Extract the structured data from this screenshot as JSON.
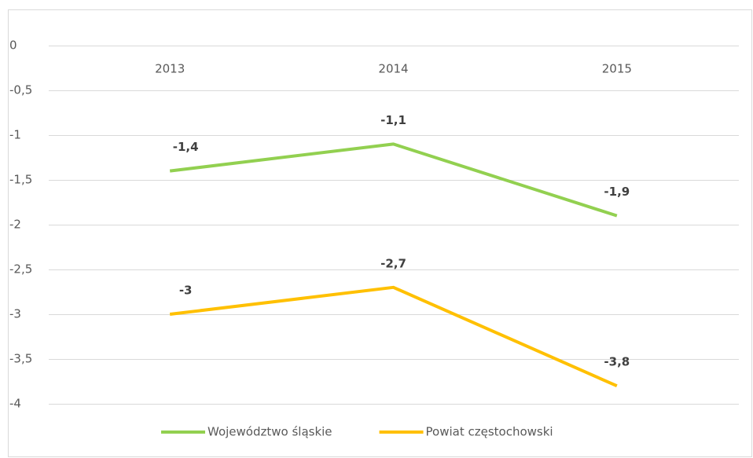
{
  "chart_data": {
    "type": "line",
    "categories": [
      "2013",
      "2014",
      "2015"
    ],
    "series": [
      {
        "name": "Województwo śląskie",
        "color": "#92d050",
        "values": [
          -1.4,
          -1.1,
          -1.9
        ],
        "value_labels": [
          "-1,4",
          "-1,1",
          "-1,9"
        ]
      },
      {
        "name": "Powiat częstochowski",
        "color": "#ffc000",
        "values": [
          -3,
          -2.7,
          -3.8
        ],
        "value_labels": [
          "-3",
          "-2,7",
          "-3,8"
        ]
      }
    ],
    "ylim": [
      -4,
      0
    ],
    "yticks": [
      0,
      {
        "value": -0.5,
        "label": "-0,5"
      },
      -1,
      {
        "value": -1.5,
        "label": "-1,5"
      },
      -2,
      {
        "value": -2.5,
        "label": "-2,5"
      },
      -3,
      {
        "value": -3.5,
        "label": "-3,5"
      },
      -4
    ],
    "grid": true,
    "legend": "bottom"
  }
}
